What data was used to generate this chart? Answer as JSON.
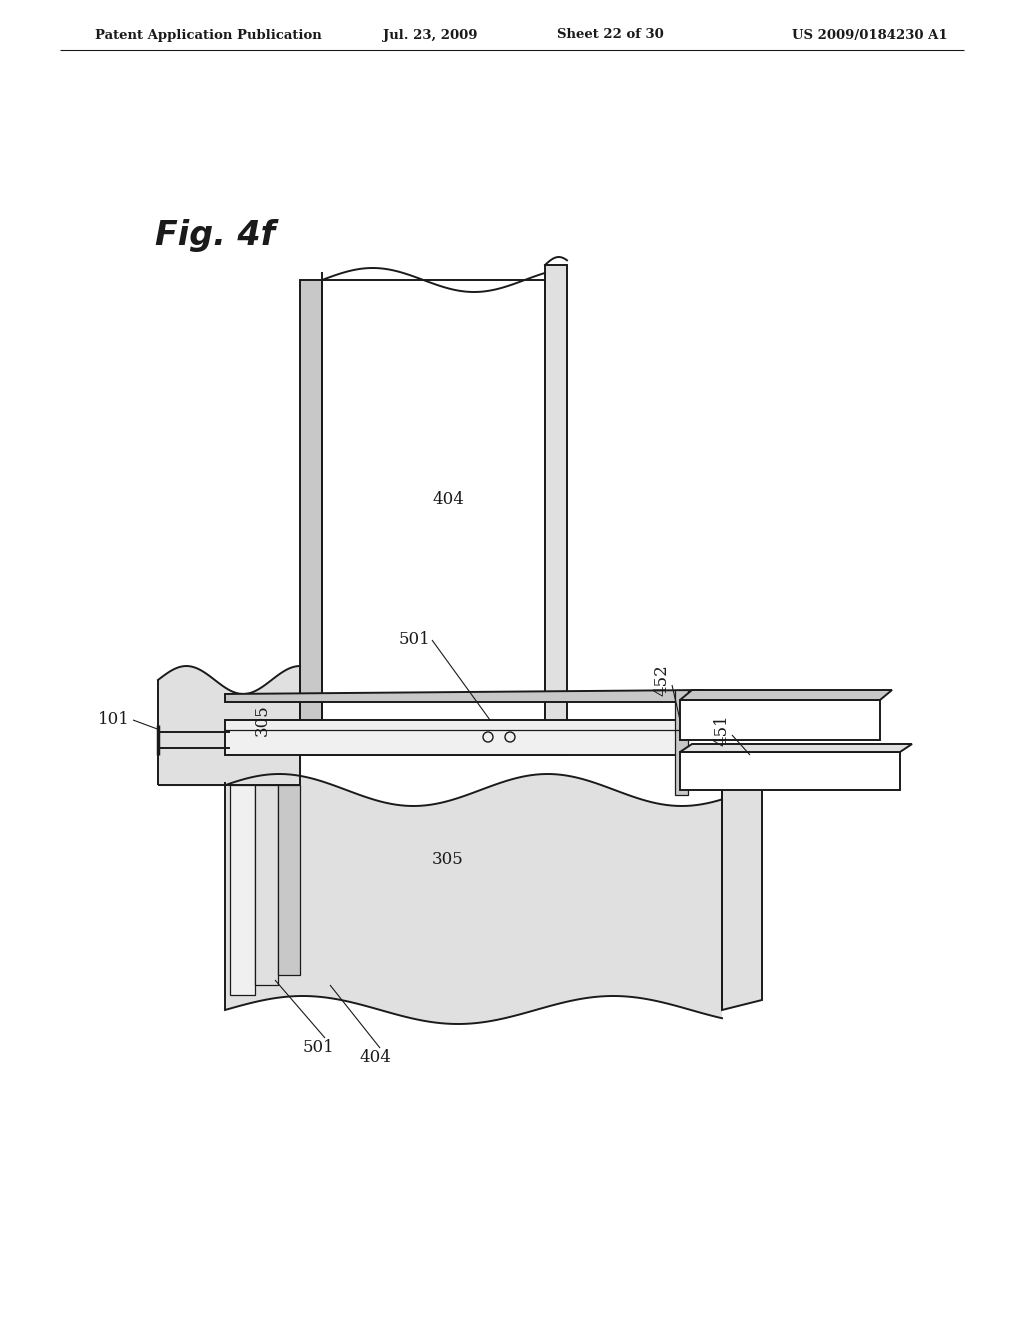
{
  "title_header": "Patent Application Publication",
  "date_header": "Jul. 23, 2009",
  "sheet_header": "Sheet 22 of 30",
  "patent_header": "US 2009/0184230 A1",
  "fig_label": "Fig. 4f",
  "background_color": "#ffffff",
  "line_color": "#1a1a1a",
  "gray1": "#f0f0f0",
  "gray2": "#e0e0e0",
  "gray3": "#c8c8c8",
  "gray4": "#b0b0b0"
}
